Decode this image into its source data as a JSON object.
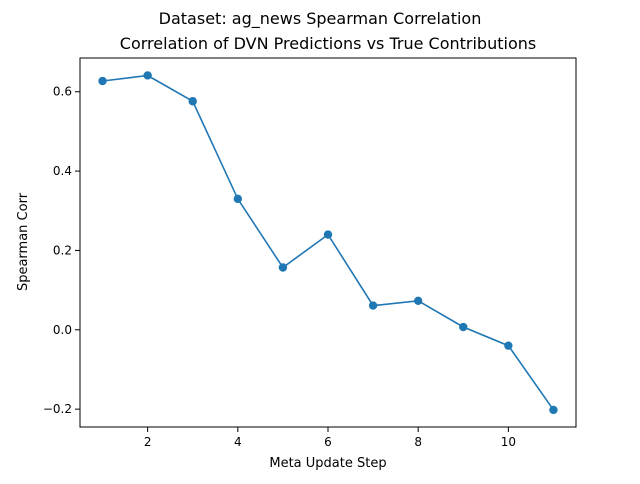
{
  "figure": {
    "suptitle": "Dataset: ag_news Spearman Correlation"
  },
  "chart_data": {
    "type": "line",
    "title": "Correlation of DVN Predictions vs True Contributions",
    "xlabel": "Meta Update Step",
    "ylabel": "Spearman Corr",
    "xlim": [
      0.5,
      11.5
    ],
    "ylim": [
      -0.245,
      0.685
    ],
    "xticks": [
      2,
      4,
      6,
      8,
      10
    ],
    "xtick_labels": [
      "2",
      "4",
      "6",
      "8",
      "10"
    ],
    "yticks": [
      -0.2,
      0.0,
      0.2,
      0.4,
      0.6
    ],
    "ytick_labels": [
      "−0.2",
      "0.0",
      "0.2",
      "0.4",
      "0.6"
    ],
    "grid": false,
    "series": [
      {
        "color": "#1f77b4",
        "marker": "circle",
        "x": [
          1,
          2,
          3,
          4,
          5,
          6,
          7,
          8,
          9,
          10,
          11
        ],
        "y": [
          0.627,
          0.641,
          0.576,
          0.33,
          0.157,
          0.24,
          0.061,
          0.073,
          0.007,
          -0.04,
          -0.202
        ]
      }
    ]
  }
}
